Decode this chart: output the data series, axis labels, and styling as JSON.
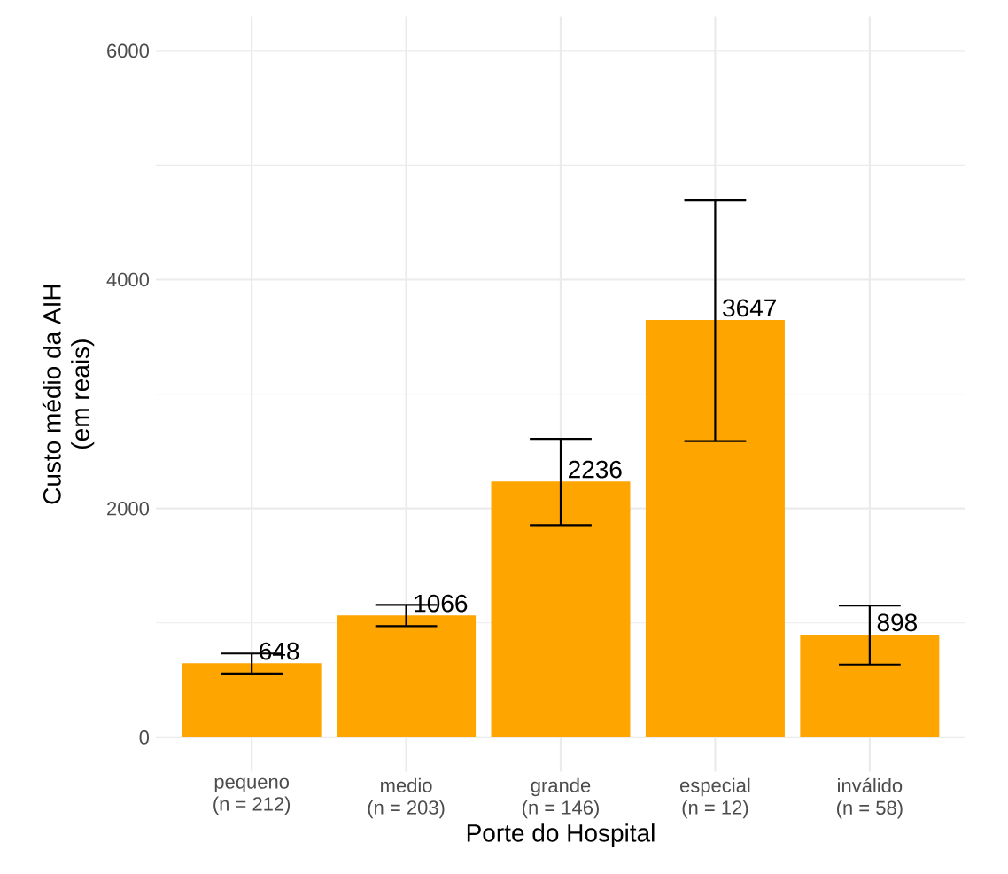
{
  "chart_data": {
    "type": "bar",
    "xlabel": "Porte do Hospital",
    "ylabel": "Custo médio da AIH\n(em reais)",
    "categories": [
      "pequeno\n(n = 212)",
      "medio\n(n = 203)",
      "grande\n(n = 146)",
      "especial\n(n = 12)",
      "inválido\n(n = 58)"
    ],
    "values": [
      648,
      1066,
      2236,
      3647,
      898
    ],
    "errors": [
      [
        558,
        733
      ],
      [
        972,
        1158
      ],
      [
        1856,
        2609
      ],
      [
        2589,
        4693
      ],
      [
        636,
        1152
      ]
    ],
    "color": "#ffa500",
    "data_labels": true,
    "ylim": [
      -300,
      6300
    ],
    "yticks": [
      0,
      {
        "value": 1000,
        "label": null
      },
      2000,
      {
        "value": 3000,
        "label": null
      },
      4000,
      {
        "value": 5000,
        "label": null
      },
      6000
    ],
    "grid": true
  }
}
